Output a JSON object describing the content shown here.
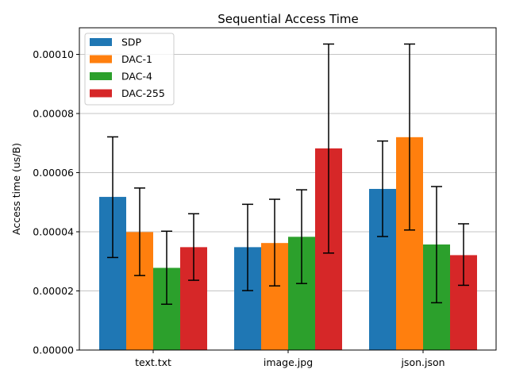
{
  "chart_data": {
    "type": "bar",
    "title": "Sequential Access Time",
    "xlabel": "",
    "ylabel": "Access time (us/B)",
    "categories": [
      "text.txt",
      "image.jpg",
      "json.json"
    ],
    "ylim": [
      0,
      0.000109
    ],
    "yticks": [
      "0.00000",
      "0.00002",
      "0.00004",
      "0.00006",
      "0.00008",
      "0.00010"
    ],
    "ytick_values": [
      0,
      2e-05,
      4e-05,
      6e-05,
      8e-05,
      0.0001
    ],
    "grid": "horizontal",
    "legend_position": "top-left",
    "series": [
      {
        "name": "SDP",
        "color": "#1f77b4",
        "values": [
          5.18e-05,
          3.48e-05,
          5.45e-05
        ],
        "err_low": [
          3.13e-05,
          2.01e-05,
          3.84e-05
        ],
        "err_high": [
          7.21e-05,
          4.93e-05,
          7.07e-05
        ]
      },
      {
        "name": "DAC-1",
        "color": "#ff7f0e",
        "values": [
          3.99e-05,
          3.62e-05,
          7.2e-05
        ],
        "err_low": [
          2.52e-05,
          2.17e-05,
          4.06e-05
        ],
        "err_high": [
          5.48e-05,
          5.1e-05,
          0.0001035
        ]
      },
      {
        "name": "DAC-4",
        "color": "#2ca02c",
        "values": [
          2.78e-05,
          3.83e-05,
          3.57e-05
        ],
        "err_low": [
          1.55e-05,
          2.25e-05,
          1.6e-05
        ],
        "err_high": [
          4.02e-05,
          5.42e-05,
          5.53e-05
        ]
      },
      {
        "name": "DAC-255",
        "color": "#d62728",
        "values": [
          3.48e-05,
          6.82e-05,
          3.21e-05
        ],
        "err_low": [
          2.36e-05,
          3.28e-05,
          2.19e-05
        ],
        "err_high": [
          4.61e-05,
          0.0001035,
          4.27e-05
        ]
      }
    ]
  }
}
